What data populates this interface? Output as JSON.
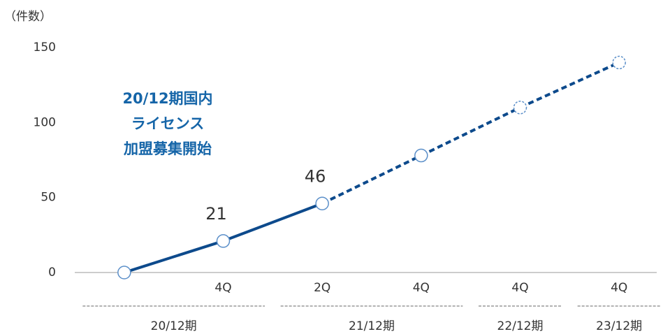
{
  "chart_data": {
    "type": "line",
    "unit_label": "（件数）",
    "annotation": [
      "20/12期国内",
      "ライセンス",
      "加盟募集開始"
    ],
    "categories": [
      null,
      "4Q",
      "2Q",
      "4Q",
      "4Q",
      "4Q"
    ],
    "values": [
      0,
      21,
      46,
      78,
      110,
      140
    ],
    "value_labels": [
      null,
      "21",
      "46",
      null,
      null,
      null
    ],
    "segment_styles": [
      "solid",
      "solid",
      "dashed",
      "dashed",
      "dashed"
    ],
    "marker_styles": [
      "solid",
      "solid",
      "solid",
      "solid",
      "dashed",
      "dashed"
    ],
    "color": "#0d4a8c",
    "marker_color": "#5b8fc9",
    "annotation_color": "#1565a8",
    "ylim": [
      0,
      150
    ],
    "yticks": [
      0,
      50,
      100,
      150
    ],
    "groups": [
      {
        "label": "20/12期",
        "categories": [
          0,
          1
        ]
      },
      {
        "label": "21/12期",
        "categories": [
          2,
          3
        ]
      },
      {
        "label": "22/12期",
        "categories": [
          4
        ]
      },
      {
        "label": "23/12期",
        "categories": [
          5
        ]
      }
    ]
  }
}
